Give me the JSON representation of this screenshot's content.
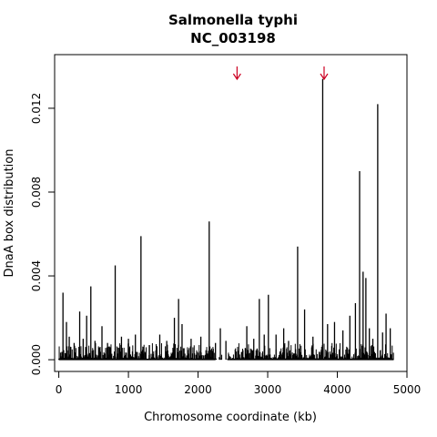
{
  "chart_data": {
    "type": "bar",
    "title": "Salmonella typhi",
    "subtitle": "NC_003198",
    "xlabel": "Chromosome coordinate (kb)",
    "ylabel": "DnaA box distribution",
    "xlim": [
      -60,
      5000
    ],
    "ylim": [
      -0.00056,
      0.01456
    ],
    "xticks": [
      0,
      1000,
      2000,
      3000,
      4000,
      5000
    ],
    "yticks": [
      "0.000",
      "0.004",
      "0.008",
      "0.012"
    ],
    "grid": false,
    "colors": {
      "bars": "#000000",
      "arrows": "#cc0022"
    },
    "arrows_at_kb": [
      2560,
      3810
    ],
    "peaks": [
      {
        "x": 60,
        "y": 0.0032
      },
      {
        "x": 110,
        "y": 0.0018
      },
      {
        "x": 150,
        "y": 0.0011
      },
      {
        "x": 220,
        "y": 0.0008
      },
      {
        "x": 300,
        "y": 0.0023
      },
      {
        "x": 350,
        "y": 0.001
      },
      {
        "x": 400,
        "y": 0.0021
      },
      {
        "x": 460,
        "y": 0.0035
      },
      {
        "x": 520,
        "y": 0.0009
      },
      {
        "x": 620,
        "y": 0.0016
      },
      {
        "x": 700,
        "y": 0.0008
      },
      {
        "x": 810,
        "y": 0.0045
      },
      {
        "x": 900,
        "y": 0.0011
      },
      {
        "x": 1000,
        "y": 0.001
      },
      {
        "x": 1100,
        "y": 0.0012
      },
      {
        "x": 1180,
        "y": 0.0059
      },
      {
        "x": 1300,
        "y": 0.0007
      },
      {
        "x": 1450,
        "y": 0.0012
      },
      {
        "x": 1550,
        "y": 0.0009
      },
      {
        "x": 1660,
        "y": 0.002
      },
      {
        "x": 1720,
        "y": 0.0029
      },
      {
        "x": 1770,
        "y": 0.0017
      },
      {
        "x": 1900,
        "y": 0.001
      },
      {
        "x": 2040,
        "y": 0.0011
      },
      {
        "x": 2160,
        "y": 0.0066
      },
      {
        "x": 2250,
        "y": 0.0008
      },
      {
        "x": 2320,
        "y": 0.0015
      },
      {
        "x": 2400,
        "y": 0.0009
      },
      {
        "x": 2700,
        "y": 0.0016
      },
      {
        "x": 2800,
        "y": 0.001
      },
      {
        "x": 2880,
        "y": 0.0029
      },
      {
        "x": 2950,
        "y": 0.0012
      },
      {
        "x": 3010,
        "y": 0.0031
      },
      {
        "x": 3120,
        "y": 0.0012
      },
      {
        "x": 3230,
        "y": 0.0015
      },
      {
        "x": 3300,
        "y": 0.0009
      },
      {
        "x": 3430,
        "y": 0.0054
      },
      {
        "x": 3530,
        "y": 0.0024
      },
      {
        "x": 3650,
        "y": 0.0011
      },
      {
        "x": 3790,
        "y": 0.0134
      },
      {
        "x": 3860,
        "y": 0.0017
      },
      {
        "x": 3960,
        "y": 0.0018
      },
      {
        "x": 4080,
        "y": 0.0014
      },
      {
        "x": 4180,
        "y": 0.0021
      },
      {
        "x": 4260,
        "y": 0.0027
      },
      {
        "x": 4320,
        "y": 0.009
      },
      {
        "x": 4370,
        "y": 0.0042
      },
      {
        "x": 4410,
        "y": 0.0039
      },
      {
        "x": 4460,
        "y": 0.0015
      },
      {
        "x": 4510,
        "y": 0.001
      },
      {
        "x": 4580,
        "y": 0.0122
      },
      {
        "x": 4650,
        "y": 0.0013
      },
      {
        "x": 4700,
        "y": 0.0022
      },
      {
        "x": 4760,
        "y": 0.0015
      }
    ],
    "gaps_kb": [
      [
        2250,
        2420
      ]
    ],
    "x_max_data": 4810
  }
}
